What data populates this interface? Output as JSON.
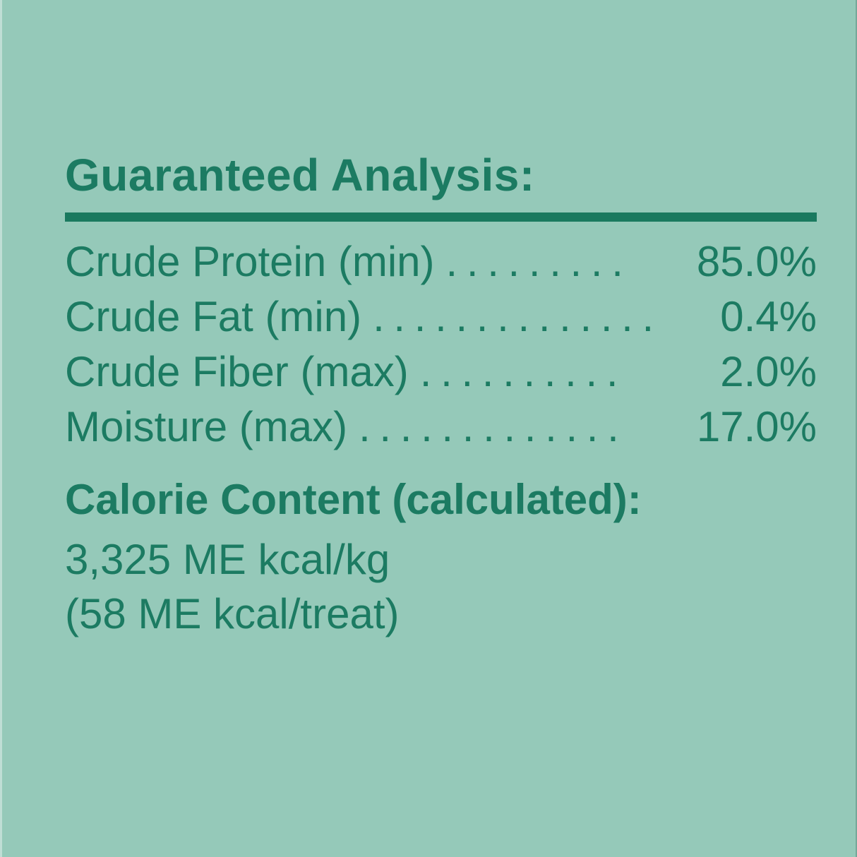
{
  "colors": {
    "background": "#95c9b9",
    "text_green": "#1c7b62",
    "rule_green": "#1a795f"
  },
  "panel": {
    "title": "Guaranteed Analysis:",
    "rows": [
      {
        "label": "Crude Protein (min)",
        "dots": ". . . . . . . . .",
        "value": "85.0%"
      },
      {
        "label": "Crude Fat (min)",
        "dots": ". . . . . . . . . . . . . .",
        "value": "0.4%"
      },
      {
        "label": "Crude Fiber (max)",
        "dots": ". . . . . . . . . .",
        "value": "2.0%"
      },
      {
        "label": "Moisture (max)",
        "dots": ". . . . . . . . . . . . .",
        "value": "17.0%"
      }
    ],
    "calorie": {
      "heading": "Calorie Content (calculated):",
      "lines": [
        "3,325 ME kcal/kg",
        "(58 ME kcal/treat)"
      ]
    }
  }
}
